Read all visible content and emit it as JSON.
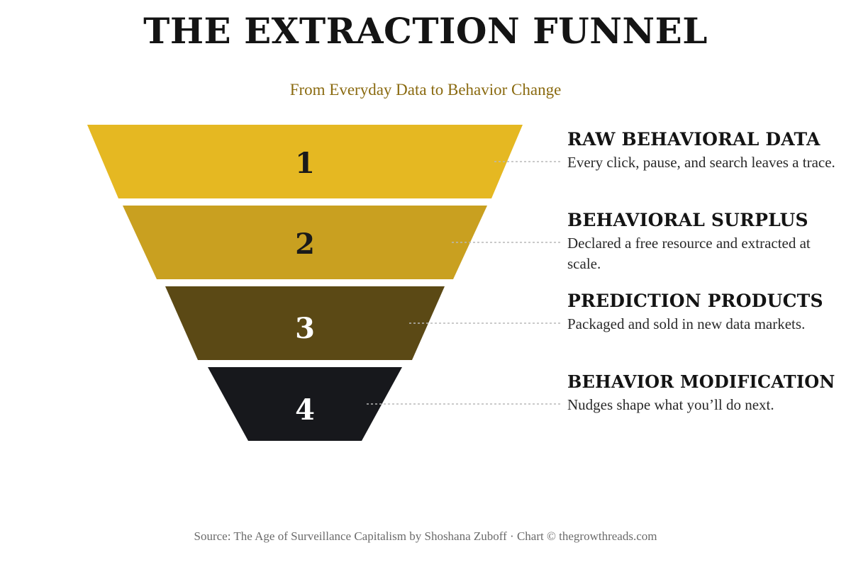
{
  "title": "THE EXTRACTION FUNNEL",
  "subtitle": "From Everyday Data to Behavior Change",
  "stages": [
    {
      "number": "1",
      "heading": "RAW BEHAVIORAL DATA",
      "description": "Every click, pause, and search leaves a trace.",
      "color": "#e5b822",
      "number_color": "#1a1a1a"
    },
    {
      "number": "2",
      "heading": "BEHAVIORAL SURPLUS",
      "description": "Declared a free resource and extracted at scale.",
      "color": "#c9a020",
      "number_color": "#1a1a1a"
    },
    {
      "number": "3",
      "heading": "PREDICTION PRODUCTS",
      "description": "Packaged and sold in new data markets.",
      "color": "#5b4915",
      "number_color": "#ffffff"
    },
    {
      "number": "4",
      "heading": "BEHAVIOR MODIFICATION",
      "description": "Nudges shape what you’ll do next.",
      "color": "#17181c",
      "number_color": "#ffffff"
    }
  ],
  "source": "Source: The Age of Surveillance Capitalism by Shoshana Zuboff · Chart © thegrowthreads.com"
}
